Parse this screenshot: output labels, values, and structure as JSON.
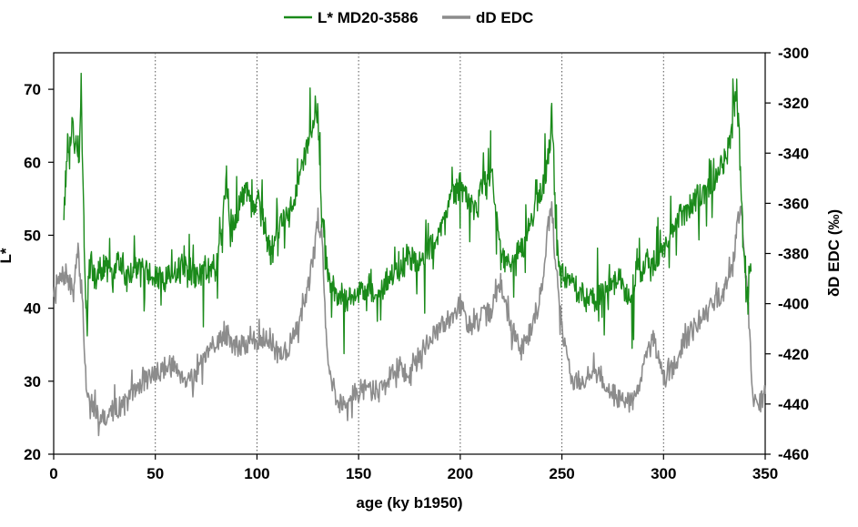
{
  "chart_data": {
    "type": "line",
    "xlabel": "age (ky b1950)",
    "ylabel_left": "L*",
    "ylabel_right": "δD EDC (‰)",
    "xlim": [
      0,
      350
    ],
    "xticks": [
      "0",
      "50",
      "100",
      "150",
      "200",
      "250",
      "300",
      "350"
    ],
    "ylim_left": [
      20,
      75
    ],
    "yticks_left": [
      "20",
      "30",
      "40",
      "50",
      "60",
      "70"
    ],
    "ylim_right": [
      -460,
      -300
    ],
    "yticks_right": [
      "-460",
      "-440",
      "-420",
      "-400",
      "-380",
      "-360",
      "-340",
      "-320",
      "-300"
    ],
    "grid": "vertical dotted at each x tick",
    "legend_position": "top-center",
    "colors": {
      "L*": "#1a8a1a",
      "dD": "#8c8c8c"
    },
    "series": [
      {
        "name": "L* MD20-3586",
        "axis": "left",
        "x": [
          5,
          6,
          7,
          8,
          9,
          10,
          11,
          12,
          13,
          13.5,
          14,
          15,
          16,
          16.5,
          17,
          18,
          20,
          22,
          25,
          28,
          30,
          33,
          36,
          40,
          45,
          50,
          55,
          60,
          65,
          70,
          75,
          80,
          83,
          85,
          87,
          90,
          93,
          95,
          98,
          100,
          103,
          105,
          107,
          110,
          113,
          115,
          118,
          120,
          123,
          125,
          127,
          129,
          130,
          131,
          133,
          135,
          137,
          140,
          145,
          150,
          155,
          160,
          165,
          170,
          175,
          180,
          185,
          190,
          193,
          196,
          200,
          203,
          205,
          208,
          210,
          213,
          215,
          218,
          220,
          223,
          226,
          230,
          233,
          236,
          240,
          242,
          244,
          245,
          246,
          247,
          249,
          252,
          255,
          260,
          265,
          270,
          275,
          278,
          282,
          285,
          287,
          289,
          292,
          295,
          300,
          303,
          306,
          310,
          313,
          316,
          320,
          323,
          326,
          330,
          333,
          335,
          336,
          337,
          338,
          339,
          340,
          341,
          342,
          343
        ],
        "values": [
          53,
          58,
          63,
          60,
          67,
          62,
          65,
          58,
          64,
          72,
          60,
          50,
          40,
          38,
          44,
          46,
          44,
          45,
          46,
          44,
          45,
          47,
          44,
          46,
          45,
          44,
          44,
          45,
          46,
          44,
          45,
          46,
          51,
          58,
          50,
          53,
          55,
          56,
          53,
          55,
          52,
          50,
          47,
          50,
          53,
          52,
          55,
          57,
          60,
          62,
          64,
          68,
          67,
          58,
          50,
          44,
          43,
          42,
          41,
          42,
          43,
          42,
          44,
          45,
          47,
          46,
          48,
          50,
          52,
          55,
          57,
          55,
          54,
          53,
          56,
          58,
          60,
          52,
          48,
          46,
          47,
          48,
          50,
          53,
          56,
          58,
          62,
          67,
          60,
          50,
          46,
          44,
          43,
          42,
          41,
          42,
          43,
          44,
          42,
          40,
          47,
          45,
          47,
          46,
          48,
          50,
          52,
          53,
          54,
          55,
          56,
          57,
          58,
          60,
          63,
          68,
          70,
          64,
          56,
          50,
          45,
          42,
          44,
          45
        ]
      },
      {
        "name": "dD EDC",
        "axis": "right",
        "x": [
          0,
          2,
          4,
          6,
          8,
          10,
          11,
          12,
          13,
          14,
          15,
          16,
          17,
          18,
          20,
          25,
          30,
          35,
          40,
          45,
          50,
          55,
          60,
          65,
          70,
          75,
          80,
          85,
          90,
          95,
          100,
          105,
          110,
          115,
          120,
          125,
          128,
          130,
          132,
          134,
          136,
          140,
          145,
          150,
          155,
          160,
          165,
          170,
          175,
          180,
          185,
          190,
          195,
          200,
          205,
          210,
          215,
          220,
          225,
          230,
          235,
          240,
          243,
          245,
          247,
          250,
          255,
          260,
          265,
          270,
          275,
          280,
          285,
          290,
          295,
          300,
          305,
          310,
          315,
          320,
          325,
          330,
          332,
          334,
          336,
          338,
          340,
          342,
          344,
          346,
          348,
          350
        ],
        "values": [
          -395,
          -392,
          -390,
          -388,
          -393,
          -395,
          -385,
          -380,
          -390,
          -395,
          -415,
          -432,
          -438,
          -442,
          -443,
          -445,
          -442,
          -440,
          -435,
          -430,
          -428,
          -425,
          -425,
          -430,
          -428,
          -422,
          -415,
          -412,
          -418,
          -416,
          -415,
          -412,
          -420,
          -418,
          -410,
          -395,
          -380,
          -366,
          -372,
          -410,
          -430,
          -440,
          -438,
          -435,
          -433,
          -435,
          -430,
          -425,
          -430,
          -420,
          -415,
          -410,
          -405,
          -400,
          -410,
          -406,
          -403,
          -392,
          -410,
          -418,
          -410,
          -395,
          -370,
          -362,
          -385,
          -410,
          -430,
          -432,
          -426,
          -430,
          -436,
          -438,
          -440,
          -425,
          -415,
          -430,
          -425,
          -415,
          -410,
          -405,
          -400,
          -394,
          -389,
          -385,
          -370,
          -364,
          -380,
          -410,
          -438,
          -443,
          -438,
          -436
        ]
      }
    ]
  }
}
